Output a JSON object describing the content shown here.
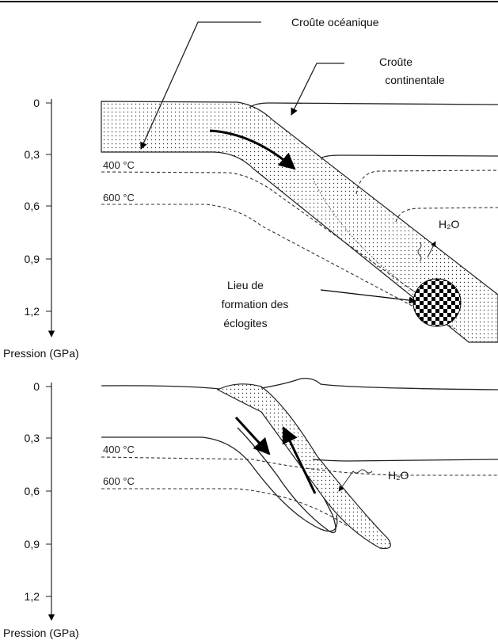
{
  "labels": {
    "oceanic_crust": "Croûte océanique",
    "continental_crust": [
      "Croûte",
      "continentale"
    ],
    "eclogites": [
      "Lieu de",
      "formation des",
      "éclogites"
    ]
  },
  "panels": [
    {
      "ticks": [
        "0",
        "0,3",
        "0,6",
        "0,9",
        "1,2"
      ],
      "axis_title": "Pression (GPa)",
      "isotherms": [
        "400 °C",
        "600 °C"
      ],
      "water": "H₂O"
    },
    {
      "ticks": [
        "0",
        "0,3",
        "0,6",
        "0,9",
        "1,2"
      ],
      "axis_title": "Pression (GPa)",
      "isotherms": [
        "400 °C",
        "600 °C"
      ],
      "water": "H₂O"
    }
  ]
}
